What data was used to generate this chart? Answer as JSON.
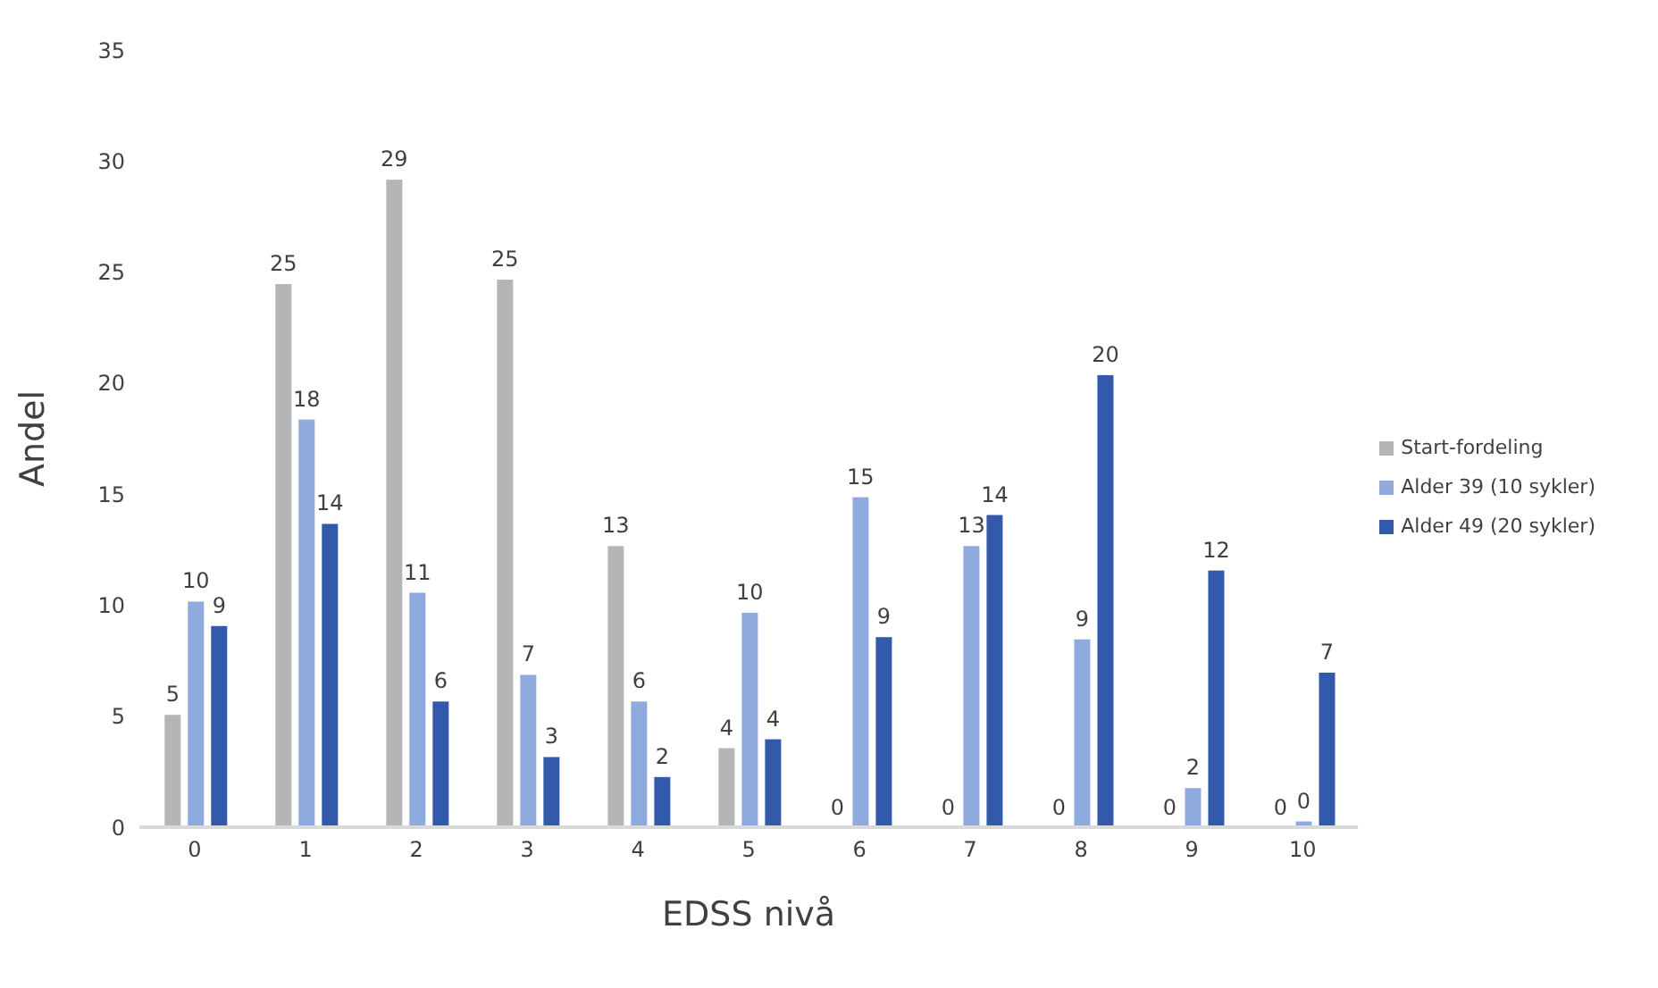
{
  "chart_data": {
    "type": "bar",
    "xlabel": "EDSS nivå",
    "ylabel": "Andel",
    "categories": [
      "0",
      "1",
      "2",
      "3",
      "4",
      "5",
      "6",
      "7",
      "8",
      "9",
      "10"
    ],
    "series": [
      {
        "name": "Start-fordeling",
        "color": "#b4b5b7",
        "values": [
          5.1,
          24.5,
          29.2,
          24.7,
          12.7,
          3.6,
          0,
          0,
          0,
          0,
          0
        ],
        "value_labels": [
          "5",
          "25",
          "29",
          "25",
          "13",
          "4",
          "0",
          "0",
          "0",
          "0",
          "0"
        ]
      },
      {
        "name": "Alder 39 (10 sykler)",
        "color": "#8faadc",
        "values": [
          10.2,
          18.4,
          10.6,
          6.9,
          5.7,
          9.7,
          14.9,
          12.7,
          8.5,
          1.8,
          0.3
        ],
        "value_labels": [
          "10",
          "18",
          "11",
          "7",
          "6",
          "10",
          "15",
          "13",
          "9",
          "2",
          "0"
        ]
      },
      {
        "name": "Alder 49 (20 sykler)",
        "color": "#3359aa",
        "values": [
          9.1,
          13.7,
          5.7,
          3.2,
          2.3,
          4.0,
          8.6,
          14.1,
          20.4,
          11.6,
          7.0
        ],
        "value_labels": [
          "9",
          "14",
          "6",
          "3",
          "2",
          "4",
          "9",
          "14",
          "20",
          "12",
          "7"
        ]
      }
    ],
    "ylim": [
      0,
      35
    ],
    "yticks": [
      0,
      5,
      10,
      15,
      20,
      25,
      30,
      35
    ],
    "grid": false,
    "legend": "right"
  }
}
